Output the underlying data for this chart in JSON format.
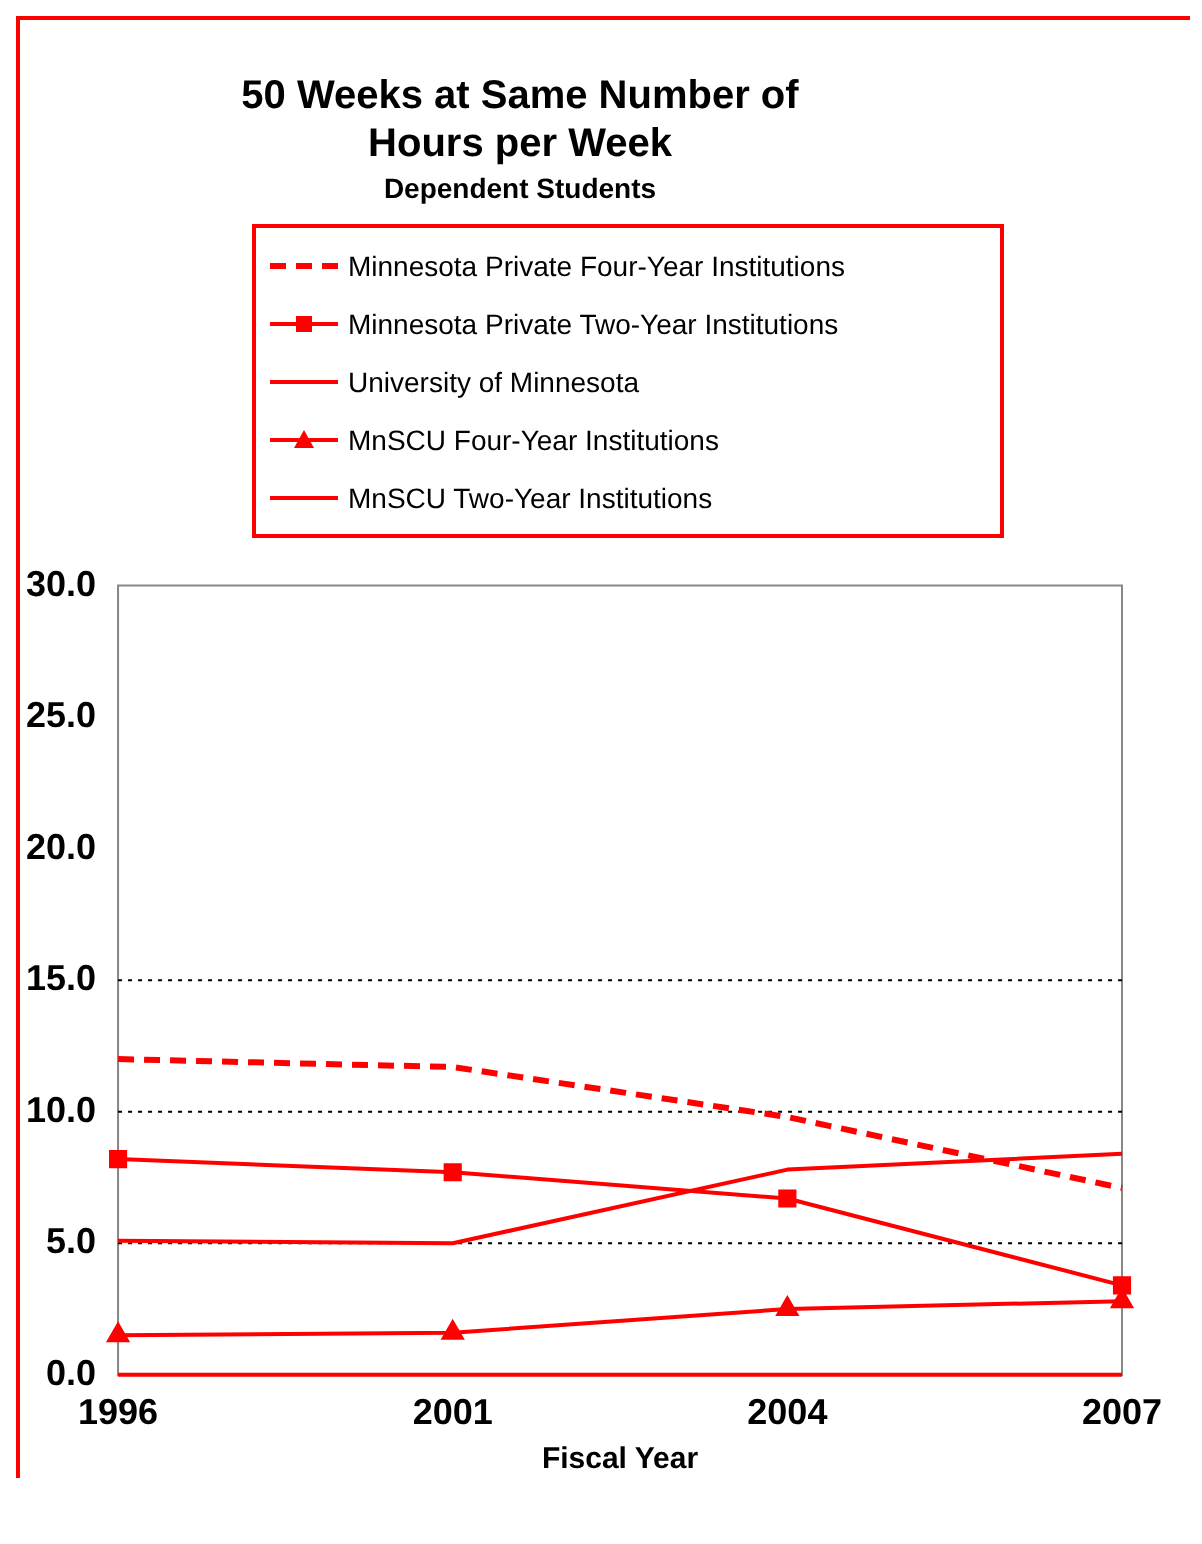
{
  "chart_data": {
    "type": "line",
    "title": "50 Weeks at Same Number of Hours per Week",
    "subtitle": "Dependent Students",
    "xlabel": "Fiscal Year",
    "categories": [
      "1996",
      "2001",
      "2004",
      "2007"
    ],
    "series": [
      {
        "name": "Minnesota Private Four-Year Institutions",
        "color": "#ff0000",
        "line_style": "dashed",
        "marker": "none",
        "values": [
          12.0,
          11.7,
          9.8,
          7.1
        ]
      },
      {
        "name": "Minnesota Private Two-Year Institutions",
        "color": "#ff0000",
        "line_style": "solid",
        "marker": "square",
        "values": [
          8.2,
          7.7,
          6.7,
          3.4
        ]
      },
      {
        "name": "University of Minnesota",
        "color": "#ff0000",
        "line_style": "solid",
        "marker": "none",
        "values": [
          5.1,
          5.0,
          7.8,
          8.4
        ]
      },
      {
        "name": "MnSCU Four-Year Institutions",
        "color": "#ff0000",
        "line_style": "solid",
        "marker": "triangle",
        "values": [
          1.5,
          1.6,
          2.5,
          2.8
        ]
      },
      {
        "name": "MnSCU Two-Year Institutions",
        "color": "#ff0000",
        "line_style": "solid",
        "marker": "none",
        "values": [
          0,
          0,
          0,
          0
        ]
      }
    ],
    "ylim": [
      0,
      30
    ],
    "yticks": [
      {
        "value": 0,
        "label": "0.0"
      },
      {
        "value": 5,
        "label": "5.0"
      },
      {
        "value": 10,
        "label": "10.0"
      },
      {
        "value": 15,
        "label": "15.0"
      },
      {
        "value": 20,
        "label": "20.0"
      },
      {
        "value": 25,
        "label": "25.0"
      },
      {
        "value": 30,
        "label": "30.0"
      }
    ],
    "ref_lines": [
      {
        "axis": "y",
        "value": 5,
        "color": "#000000",
        "line_style": "dotted"
      },
      {
        "axis": "y",
        "value": 10,
        "color": "#000000",
        "line_style": "dotted"
      },
      {
        "axis": "y",
        "value": 15,
        "color": "#000000",
        "line_style": "dotted"
      }
    ],
    "legend": "top"
  }
}
